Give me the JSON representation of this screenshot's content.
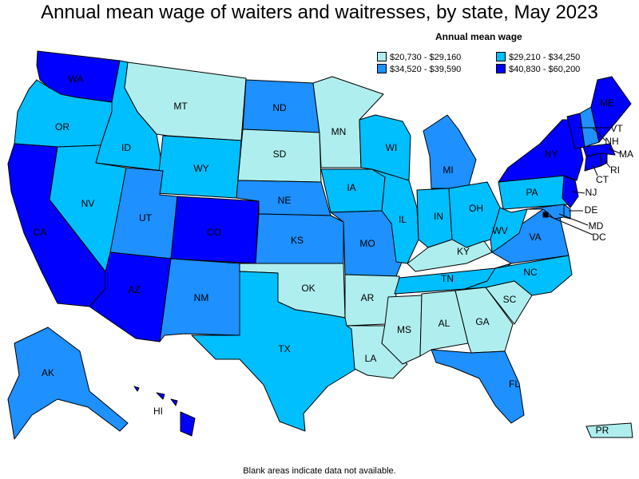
{
  "title": "Annual mean wage of waiters and waitresses, by state, May 2023",
  "legend": {
    "title": "Annual mean wage",
    "items": [
      {
        "label": "$20,730 - $29,160",
        "color": "#afeeee"
      },
      {
        "label": "$29,210 - $34,250",
        "color": "#00bfff"
      },
      {
        "label": "$34,520 - $39,590",
        "color": "#1e90ff"
      },
      {
        "label": "$40,830 - $60,200",
        "color": "#0000ff"
      }
    ]
  },
  "footnote": "Blank areas indicate data not available.",
  "states": [
    {
      "abbr": "WA",
      "class": 3
    },
    {
      "abbr": "OR",
      "class": 1
    },
    {
      "abbr": "CA",
      "class": 3
    },
    {
      "abbr": "ID",
      "class": 1
    },
    {
      "abbr": "NV",
      "class": 1
    },
    {
      "abbr": "MT",
      "class": 0
    },
    {
      "abbr": "WY",
      "class": 1
    },
    {
      "abbr": "UT",
      "class": 2
    },
    {
      "abbr": "AZ",
      "class": 3
    },
    {
      "abbr": "CO",
      "class": 3
    },
    {
      "abbr": "NM",
      "class": 2
    },
    {
      "abbr": "ND",
      "class": 2
    },
    {
      "abbr": "SD",
      "class": 0
    },
    {
      "abbr": "NE",
      "class": 2
    },
    {
      "abbr": "KS",
      "class": 2
    },
    {
      "abbr": "OK",
      "class": 0
    },
    {
      "abbr": "TX",
      "class": 1
    },
    {
      "abbr": "MN",
      "class": 0
    },
    {
      "abbr": "IA",
      "class": 1
    },
    {
      "abbr": "MO",
      "class": 2
    },
    {
      "abbr": "AR",
      "class": 0
    },
    {
      "abbr": "LA",
      "class": 0
    },
    {
      "abbr": "WI",
      "class": 1
    },
    {
      "abbr": "IL",
      "class": 1
    },
    {
      "abbr": "MI",
      "class": 2
    },
    {
      "abbr": "IN",
      "class": 1
    },
    {
      "abbr": "OH",
      "class": 1
    },
    {
      "abbr": "KY",
      "class": 0
    },
    {
      "abbr": "TN",
      "class": 1
    },
    {
      "abbr": "MS",
      "class": 0
    },
    {
      "abbr": "AL",
      "class": 0
    },
    {
      "abbr": "GA",
      "class": 0
    },
    {
      "abbr": "FL",
      "class": 2
    },
    {
      "abbr": "SC",
      "class": 0
    },
    {
      "abbr": "NC",
      "class": 1
    },
    {
      "abbr": "VA",
      "class": 2
    },
    {
      "abbr": "WV",
      "class": 1
    },
    {
      "abbr": "PA",
      "class": 1
    },
    {
      "abbr": "NY",
      "class": 3
    },
    {
      "abbr": "NJ",
      "class": 3
    },
    {
      "abbr": "DE",
      "class": 2
    },
    {
      "abbr": "MD",
      "class": 2
    },
    {
      "abbr": "DC",
      "class": 3
    },
    {
      "abbr": "CT",
      "class": 3
    },
    {
      "abbr": "RI",
      "class": 3
    },
    {
      "abbr": "MA",
      "class": 3
    },
    {
      "abbr": "VT",
      "class": 3
    },
    {
      "abbr": "NH",
      "class": 2
    },
    {
      "abbr": "ME",
      "class": 3
    },
    {
      "abbr": "AK",
      "class": 2
    },
    {
      "abbr": "HI",
      "class": 3
    },
    {
      "abbr": "PR",
      "class": 0
    }
  ]
}
